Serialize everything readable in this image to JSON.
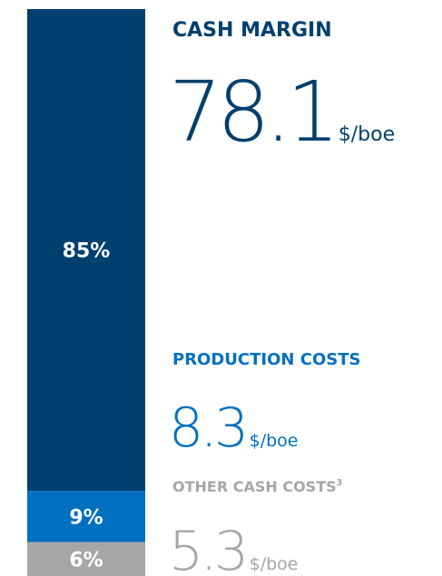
{
  "chart_data": {
    "type": "stacked-bar",
    "series": [
      {
        "name": "CASH MARGIN",
        "color": "#003f6e",
        "values": [
          85
        ],
        "value_labels": [
          "85%"
        ],
        "amount": 78.1,
        "unit": "$/boe"
      },
      {
        "name": "PRODUCTION COSTS",
        "color": "#0070c0",
        "values": [
          9
        ],
        "value_labels": [
          "9%"
        ],
        "amount": 8.3,
        "unit": "$/boe"
      },
      {
        "name": "OTHER CASH COSTS",
        "note": "3",
        "color": "#a6a6a6",
        "values": [
          6
        ],
        "value_labels": [
          "6%"
        ],
        "amount": 5.3,
        "unit": "$/boe"
      }
    ]
  }
}
